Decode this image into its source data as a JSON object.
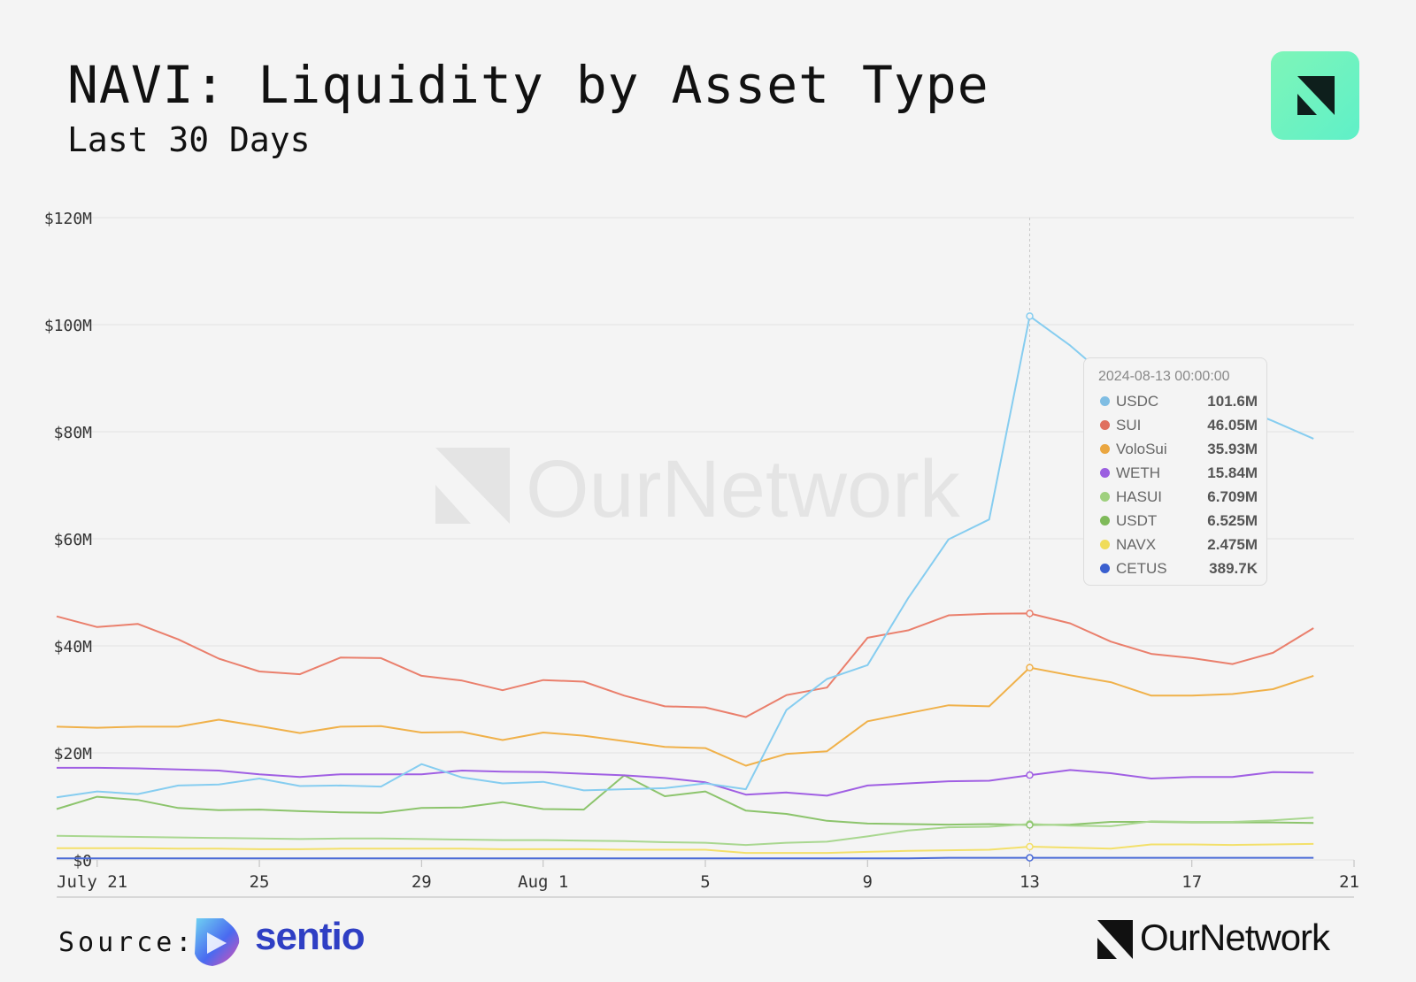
{
  "header": {
    "title": "NAVI: Liquidity by Asset Type",
    "subtitle": "Last 30 Days"
  },
  "watermark": "OurNetwork",
  "footer": {
    "source_label": "Source:",
    "source_name": "sentio",
    "brand": "OurNetwork"
  },
  "tooltip": {
    "date": "2024-08-13 00:00:00",
    "rows": [
      {
        "name": "USDC",
        "value": "101.6M",
        "color": "#7fbde3"
      },
      {
        "name": "SUI",
        "value": "46.05M",
        "color": "#e0705f"
      },
      {
        "name": "VoloSui",
        "value": "35.93M",
        "color": "#eaa640"
      },
      {
        "name": "WETH",
        "value": "15.84M",
        "color": "#9b5fe0"
      },
      {
        "name": "HASUI",
        "value": "6.709M",
        "color": "#9fd07e"
      },
      {
        "name": "USDT",
        "value": "6.525M",
        "color": "#7fba5a"
      },
      {
        "name": "NAVX",
        "value": "2.475M",
        "color": "#f0dc5a"
      },
      {
        "name": "CETUS",
        "value": "389.7K",
        "color": "#3a5fcf"
      }
    ]
  },
  "chart_data": {
    "type": "line",
    "title": "NAVI: Liquidity by Asset Type",
    "subtitle": "Last 30 Days",
    "x": [
      "2024-07-20",
      "2024-07-21",
      "2024-07-22",
      "2024-07-23",
      "2024-07-24",
      "2024-07-25",
      "2024-07-26",
      "2024-07-27",
      "2024-07-28",
      "2024-07-29",
      "2024-07-30",
      "2024-07-31",
      "2024-08-01",
      "2024-08-02",
      "2024-08-03",
      "2024-08-04",
      "2024-08-05",
      "2024-08-06",
      "2024-08-07",
      "2024-08-08",
      "2024-08-09",
      "2024-08-10",
      "2024-08-11",
      "2024-08-12",
      "2024-08-13",
      "2024-08-14",
      "2024-08-15",
      "2024-08-16",
      "2024-08-17",
      "2024-08-18",
      "2024-08-19",
      "2024-08-20",
      "2024-08-21"
    ],
    "x_tick_labels": [
      "July 21",
      "25",
      "29",
      "Aug 1",
      "5",
      "9",
      "13",
      "17",
      "21"
    ],
    "y_tick_labels": [
      "$0",
      "$20M",
      "$40M",
      "$60M",
      "$80M",
      "$100M",
      "$120M"
    ],
    "ylim": [
      0,
      120
    ],
    "y_unit": "M",
    "grid": true,
    "series": [
      {
        "name": "USDC",
        "color": "#86cdf0",
        "values": [
          11.7,
          12.8,
          12.3,
          13.9,
          14.1,
          15.2,
          13.8,
          13.9,
          13.7,
          17.9,
          15.4,
          14.3,
          14.6,
          13.0,
          13.2,
          13.4,
          14.3,
          13.2,
          28.0,
          33.8,
          36.4,
          48.9,
          59.9,
          63.6,
          101.6,
          96.1,
          89.6,
          86.6,
          85.8,
          85.1,
          82.0,
          78.7,
          null
        ]
      },
      {
        "name": "SUI",
        "color": "#ea7f6c",
        "values": [
          45.5,
          43.5,
          44.1,
          41.2,
          37.6,
          35.2,
          34.7,
          37.8,
          37.7,
          34.4,
          33.5,
          31.7,
          33.6,
          33.3,
          30.7,
          28.7,
          28.5,
          26.7,
          30.8,
          32.2,
          41.5,
          42.9,
          45.7,
          46.0,
          46.05,
          44.2,
          40.8,
          38.5,
          37.7,
          36.6,
          38.7,
          43.3,
          null
        ]
      },
      {
        "name": "VoloSui",
        "color": "#f0b14a",
        "values": [
          24.9,
          24.7,
          24.9,
          24.9,
          26.2,
          25.0,
          23.7,
          24.9,
          25.0,
          23.8,
          23.9,
          22.4,
          23.8,
          23.2,
          22.2,
          21.1,
          20.9,
          17.6,
          19.8,
          20.3,
          25.9,
          27.4,
          28.9,
          28.7,
          35.93,
          34.5,
          33.2,
          30.7,
          30.7,
          31.0,
          31.9,
          34.4,
          null
        ]
      },
      {
        "name": "WETH",
        "color": "#a05fe3",
        "values": [
          17.2,
          17.2,
          17.1,
          16.9,
          16.7,
          16.0,
          15.5,
          16.0,
          16.0,
          16.0,
          16.7,
          16.5,
          16.4,
          16.1,
          15.8,
          15.3,
          14.5,
          12.2,
          12.6,
          12.0,
          13.9,
          14.3,
          14.7,
          14.8,
          15.84,
          16.8,
          16.2,
          15.2,
          15.5,
          15.5,
          16.4,
          16.3,
          null
        ]
      },
      {
        "name": "HASUI",
        "color": "#a9d790",
        "values": [
          4.5,
          4.4,
          4.3,
          4.2,
          4.1,
          4.0,
          3.9,
          4.0,
          4.0,
          3.9,
          3.8,
          3.7,
          3.7,
          3.6,
          3.5,
          3.3,
          3.2,
          2.8,
          3.2,
          3.4,
          4.4,
          5.5,
          6.1,
          6.2,
          6.709,
          6.4,
          6.3,
          7.2,
          7.1,
          7.1,
          7.4,
          7.9,
          null
        ]
      },
      {
        "name": "USDT",
        "color": "#8cc46c",
        "values": [
          9.5,
          11.8,
          11.2,
          9.7,
          9.3,
          9.4,
          9.1,
          8.9,
          8.8,
          9.7,
          9.8,
          10.8,
          9.5,
          9.4,
          15.8,
          11.9,
          12.8,
          9.2,
          8.6,
          7.3,
          6.8,
          6.7,
          6.6,
          6.7,
          6.525,
          6.6,
          7.1,
          7.1,
          7.0,
          7.0,
          7.0,
          6.9,
          null
        ]
      },
      {
        "name": "NAVX",
        "color": "#f3e06a",
        "values": [
          2.2,
          2.2,
          2.2,
          2.1,
          2.1,
          2.0,
          2.0,
          2.1,
          2.1,
          2.1,
          2.1,
          2.0,
          2.0,
          2.0,
          1.9,
          1.9,
          1.9,
          1.3,
          1.3,
          1.3,
          1.5,
          1.7,
          1.8,
          1.9,
          2.475,
          2.3,
          2.1,
          2.9,
          2.9,
          2.8,
          2.9,
          3.0,
          null
        ]
      },
      {
        "name": "CETUS",
        "color": "#4a6ad6",
        "values": [
          0.3,
          0.3,
          0.3,
          0.3,
          0.3,
          0.3,
          0.3,
          0.3,
          0.3,
          0.3,
          0.3,
          0.3,
          0.3,
          0.3,
          0.3,
          0.3,
          0.3,
          0.3,
          0.3,
          0.3,
          0.3,
          0.3,
          0.4,
          0.4,
          0.3897,
          0.4,
          0.4,
          0.4,
          0.4,
          0.4,
          0.4,
          0.4,
          null
        ]
      }
    ],
    "highlight_x": "2024-08-13"
  }
}
